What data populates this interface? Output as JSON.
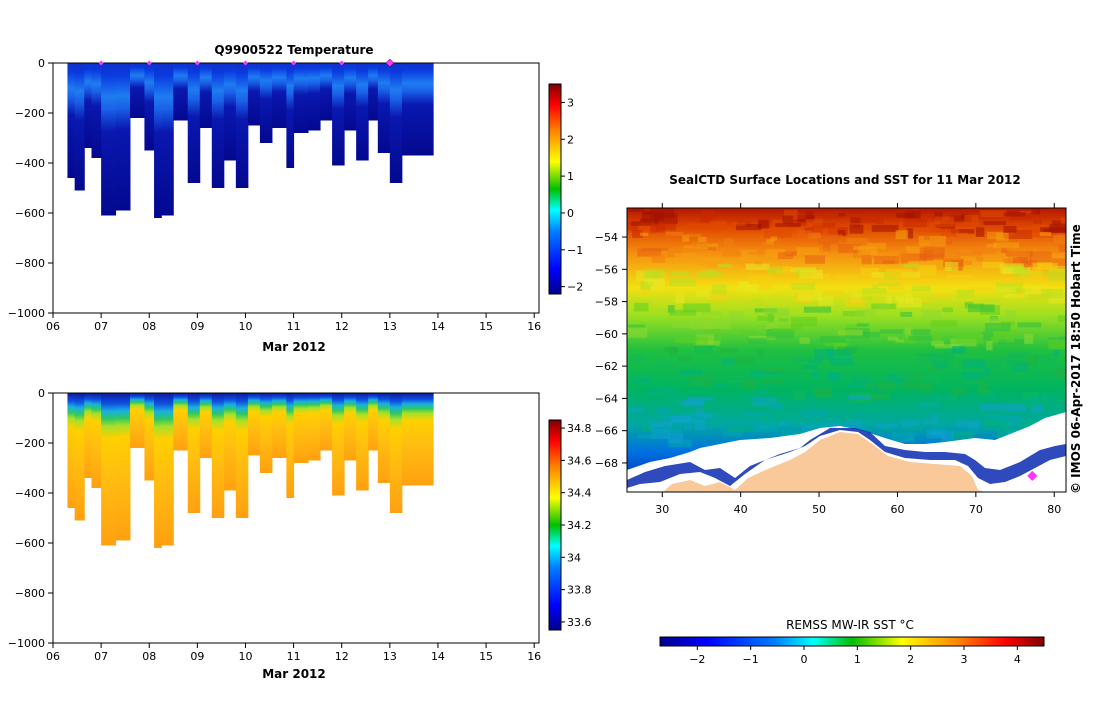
{
  "chart_data": [
    {
      "type": "heatmap",
      "title": "Q9900522  Temperature",
      "xlabel": "Mar 2012",
      "ylabel": "",
      "x_ticks": [
        "06",
        "07",
        "08",
        "09",
        "10",
        "11",
        "12",
        "13",
        "14",
        "15",
        "16"
      ],
      "xlim": [
        6,
        16.1
      ],
      "ylim": [
        -1000,
        0
      ],
      "y_ticks": [
        0,
        -200,
        -400,
        -600,
        -800,
        -1000
      ],
      "colorbar": {
        "min": -2.2,
        "max": 3.5,
        "ticks": [
          3,
          2,
          1,
          0,
          -1,
          -2
        ]
      },
      "profile_markers": [
        7,
        8,
        9,
        10,
        11,
        12,
        13
      ],
      "highlight_marker": 13,
      "profiles": [
        {
          "x0": 6.3,
          "x1": 6.45,
          "depth": -460
        },
        {
          "x0": 6.45,
          "x1": 6.65,
          "depth": -510
        },
        {
          "x0": 6.65,
          "x1": 6.8,
          "depth": -340
        },
        {
          "x0": 6.8,
          "x1": 7.0,
          "depth": -380
        },
        {
          "x0": 7.0,
          "x1": 7.3,
          "depth": -610
        },
        {
          "x0": 7.3,
          "x1": 7.6,
          "depth": -590
        },
        {
          "x0": 7.6,
          "x1": 7.9,
          "depth": -220
        },
        {
          "x0": 7.9,
          "x1": 8.1,
          "depth": -350
        },
        {
          "x0": 8.1,
          "x1": 8.25,
          "depth": -620
        },
        {
          "x0": 8.25,
          "x1": 8.5,
          "depth": -610
        },
        {
          "x0": 8.5,
          "x1": 8.8,
          "depth": -230
        },
        {
          "x0": 8.8,
          "x1": 9.05,
          "depth": -480
        },
        {
          "x0": 9.05,
          "x1": 9.3,
          "depth": -260
        },
        {
          "x0": 9.3,
          "x1": 9.55,
          "depth": -500
        },
        {
          "x0": 9.55,
          "x1": 9.8,
          "depth": -390
        },
        {
          "x0": 9.8,
          "x1": 10.05,
          "depth": -500
        },
        {
          "x0": 10.05,
          "x1": 10.3,
          "depth": -250
        },
        {
          "x0": 10.3,
          "x1": 10.55,
          "depth": -320
        },
        {
          "x0": 10.55,
          "x1": 10.85,
          "depth": -260
        },
        {
          "x0": 10.85,
          "x1": 11.0,
          "depth": -420
        },
        {
          "x0": 11.0,
          "x1": 11.3,
          "depth": -280
        },
        {
          "x0": 11.3,
          "x1": 11.55,
          "depth": -270
        },
        {
          "x0": 11.55,
          "x1": 11.8,
          "depth": -230
        },
        {
          "x0": 11.8,
          "x1": 12.05,
          "depth": -410
        },
        {
          "x0": 12.05,
          "x1": 12.3,
          "depth": -270
        },
        {
          "x0": 12.3,
          "x1": 12.55,
          "depth": -390
        },
        {
          "x0": 12.55,
          "x1": 12.75,
          "depth": -230
        },
        {
          "x0": 12.75,
          "x1": 13.0,
          "depth": -360
        },
        {
          "x0": 13.0,
          "x1": 13.25,
          "depth": -480
        },
        {
          "x0": 13.25,
          "x1": 13.9,
          "depth": -370
        }
      ]
    },
    {
      "type": "heatmap",
      "title": "",
      "xlabel": "Mar 2012",
      "ylabel": "",
      "x_ticks": [
        "06",
        "07",
        "08",
        "09",
        "10",
        "11",
        "12",
        "13",
        "14",
        "15",
        "16"
      ],
      "xlim": [
        6,
        16.1
      ],
      "ylim": [
        -1000,
        0
      ],
      "y_ticks": [
        0,
        -200,
        -400,
        -600,
        -800,
        -1000
      ],
      "colorbar": {
        "min": 33.55,
        "max": 34.85,
        "ticks": [
          "34.8",
          "34.6",
          "34.4",
          "34.2",
          "34",
          "33.8",
          "33.6"
        ]
      },
      "profiles": [
        {
          "x0": 6.3,
          "x1": 6.45,
          "depth": -460
        },
        {
          "x0": 6.45,
          "x1": 6.65,
          "depth": -510
        },
        {
          "x0": 6.65,
          "x1": 6.8,
          "depth": -340
        },
        {
          "x0": 6.8,
          "x1": 7.0,
          "depth": -380
        },
        {
          "x0": 7.0,
          "x1": 7.3,
          "depth": -610
        },
        {
          "x0": 7.3,
          "x1": 7.6,
          "depth": -590
        },
        {
          "x0": 7.6,
          "x1": 7.9,
          "depth": -220
        },
        {
          "x0": 7.9,
          "x1": 8.1,
          "depth": -350
        },
        {
          "x0": 8.1,
          "x1": 8.25,
          "depth": -620
        },
        {
          "x0": 8.25,
          "x1": 8.5,
          "depth": -610
        },
        {
          "x0": 8.5,
          "x1": 8.8,
          "depth": -230
        },
        {
          "x0": 8.8,
          "x1": 9.05,
          "depth": -480
        },
        {
          "x0": 9.05,
          "x1": 9.3,
          "depth": -260
        },
        {
          "x0": 9.3,
          "x1": 9.55,
          "depth": -500
        },
        {
          "x0": 9.55,
          "x1": 9.8,
          "depth": -390
        },
        {
          "x0": 9.8,
          "x1": 10.05,
          "depth": -500
        },
        {
          "x0": 10.05,
          "x1": 10.3,
          "depth": -250
        },
        {
          "x0": 10.3,
          "x1": 10.55,
          "depth": -320
        },
        {
          "x0": 10.55,
          "x1": 10.85,
          "depth": -260
        },
        {
          "x0": 10.85,
          "x1": 11.0,
          "depth": -420
        },
        {
          "x0": 11.0,
          "x1": 11.3,
          "depth": -280
        },
        {
          "x0": 11.3,
          "x1": 11.55,
          "depth": -270
        },
        {
          "x0": 11.55,
          "x1": 11.8,
          "depth": -230
        },
        {
          "x0": 11.8,
          "x1": 12.05,
          "depth": -410
        },
        {
          "x0": 12.05,
          "x1": 12.3,
          "depth": -270
        },
        {
          "x0": 12.3,
          "x1": 12.55,
          "depth": -390
        },
        {
          "x0": 12.55,
          "x1": 12.75,
          "depth": -230
        },
        {
          "x0": 12.75,
          "x1": 13.0,
          "depth": -360
        },
        {
          "x0": 13.0,
          "x1": 13.25,
          "depth": -480
        },
        {
          "x0": 13.25,
          "x1": 13.9,
          "depth": -370
        }
      ]
    },
    {
      "type": "heatmap",
      "title": "SealCTD Surface Locations and SST for 11 Mar 2012",
      "xlabel": "",
      "ylabel": "",
      "x_ticks": [
        30,
        40,
        50,
        60,
        70,
        80
      ],
      "y_ticks": [
        -54,
        -56,
        -58,
        -60,
        -62,
        -64,
        -66,
        -68
      ],
      "xlim": [
        25.5,
        81.5
      ],
      "ylim": [
        -69.8,
        -52.2
      ],
      "marker": {
        "lon": 77.2,
        "lat": -68.8
      },
      "side_label": "©  IMOS 06-Apr-2017 18:50 Hobart Time",
      "colorbar": {
        "label": "REMSS MW-IR SST °C",
        "min": -2.7,
        "max": 4.5,
        "ticks": [
          "-2",
          "-1",
          "0",
          "1",
          "2",
          "3",
          "4"
        ]
      }
    }
  ],
  "palette": [
    "#00008f",
    "#0000ff",
    "#0080ff",
    "#00ffff",
    "#00c000",
    "#ffff00",
    "#ff8000",
    "#ff0000",
    "#800000"
  ],
  "colors": {
    "land": "#f9c99a",
    "ice": "#ffffff",
    "marker": "#ff33ff",
    "axis": "#000000"
  }
}
